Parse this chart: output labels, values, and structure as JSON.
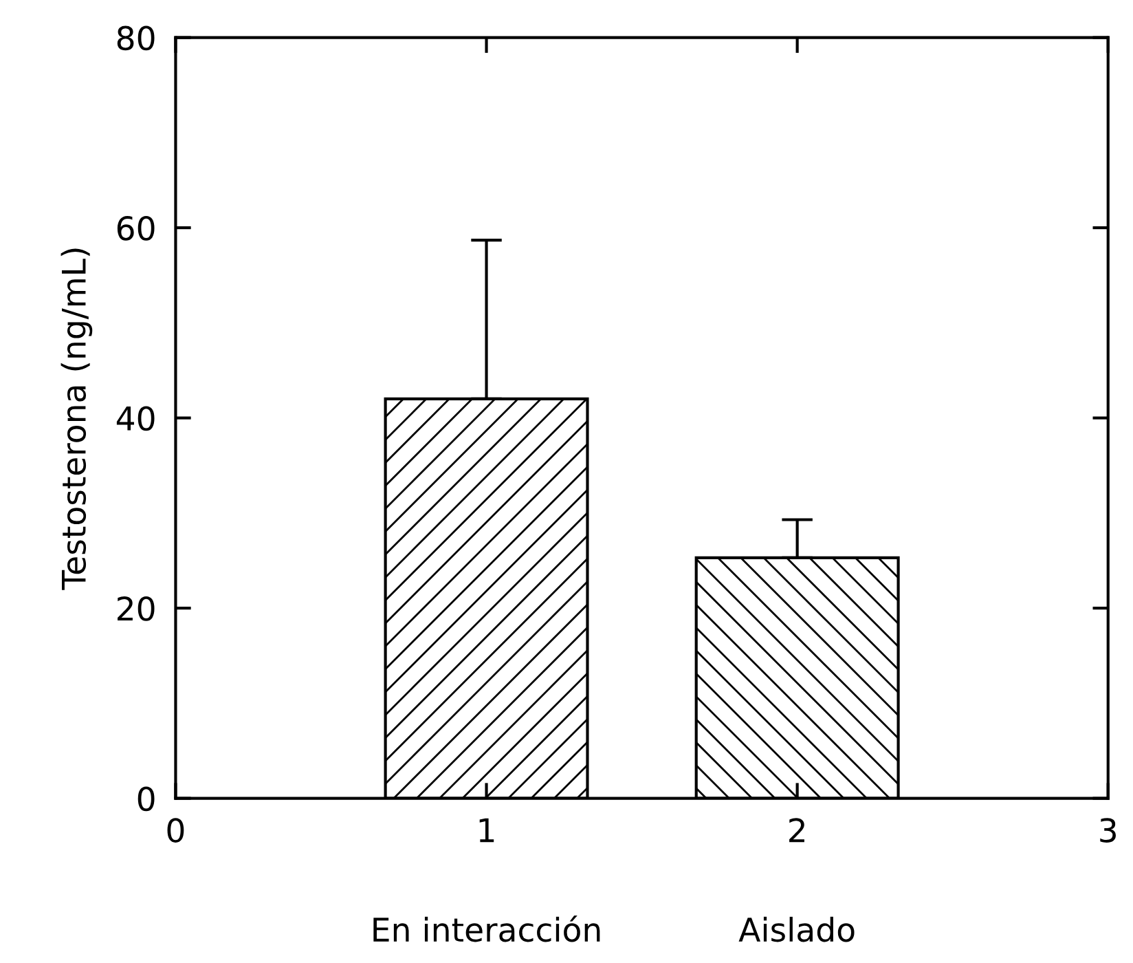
{
  "chart_data": {
    "type": "bar",
    "ylabel": "Testosterona (ng/mL)",
    "x": [
      1,
      2
    ],
    "values": [
      42,
      25.3
    ],
    "errors": [
      [
        42,
        58.7
      ],
      [
        25.3,
        29.3
      ]
    ],
    "color": "#000000",
    "xlim": [
      0,
      3
    ],
    "xticks": [
      0,
      1,
      2,
      3
    ],
    "ylim": [
      0,
      80
    ],
    "yticks": [
      0,
      20,
      40,
      60,
      80
    ],
    "annotations": [
      "En interacción",
      "Aislado"
    ],
    "grid": false
  }
}
